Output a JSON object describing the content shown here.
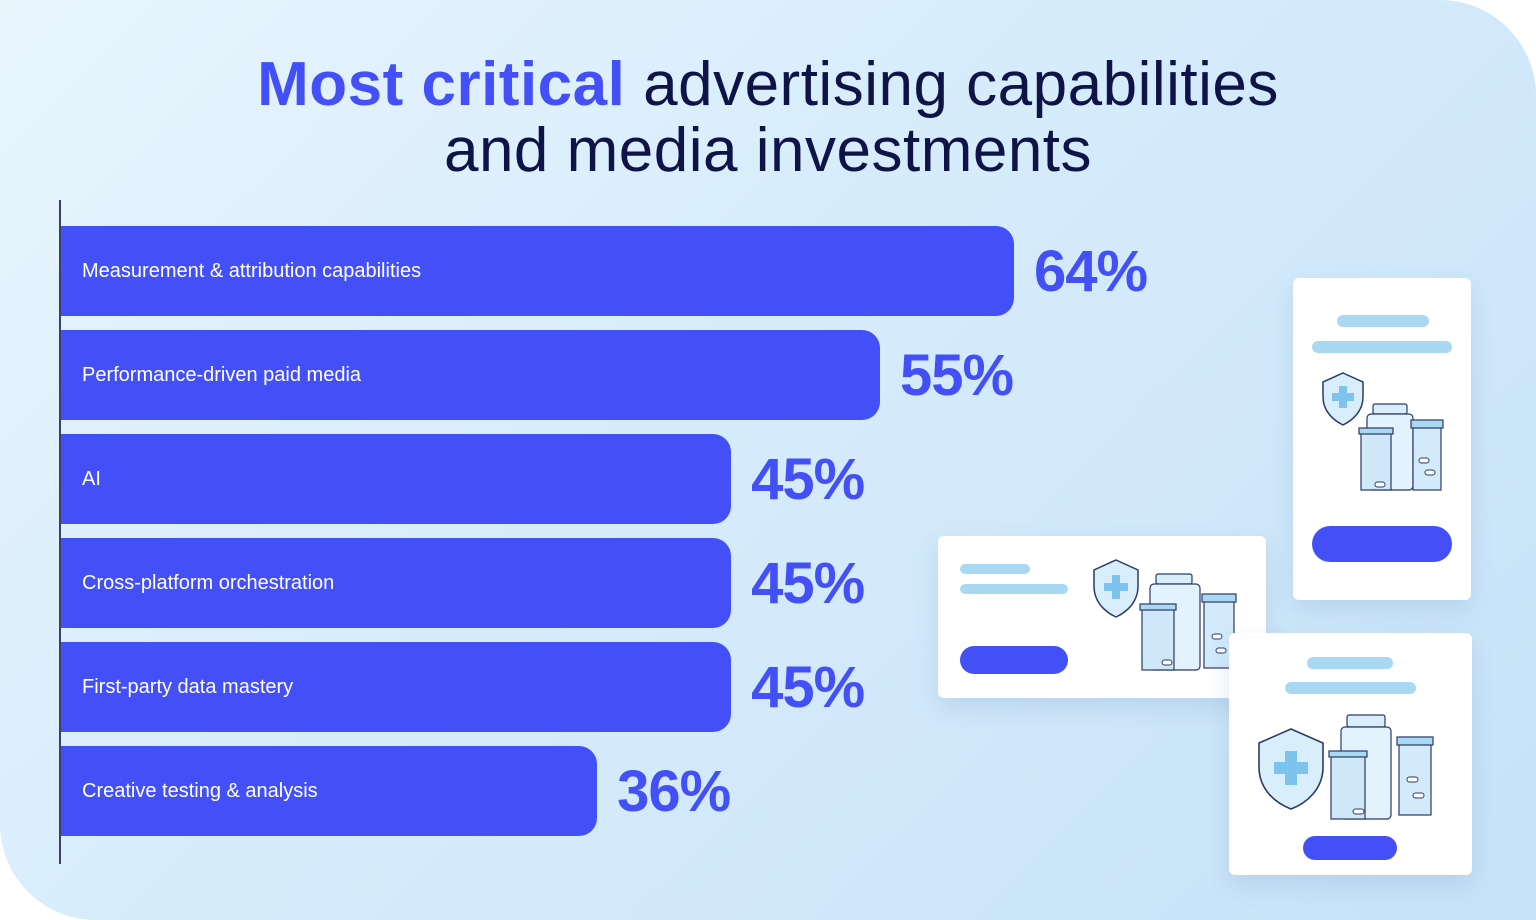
{
  "title": {
    "highlight": "Most critical",
    "rest_line1": " advertising capabilities",
    "line2": "and media investments"
  },
  "colors": {
    "accent": "#4350f7",
    "title_text": "#0e1447",
    "illustration_light": "#a9d8f3"
  },
  "chart_data": {
    "type": "bar",
    "orientation": "horizontal",
    "title": "Most critical advertising capabilities and media investments",
    "categories": [
      "Measurement & attribution capabilities",
      "Performance-driven paid media",
      "AI",
      "Cross-platform orchestration",
      "First-party data mastery",
      "Creative testing & analysis"
    ],
    "values": [
      64,
      55,
      45,
      45,
      45,
      36
    ],
    "value_labels": [
      "64%",
      "55%",
      "45%",
      "45%",
      "45%",
      "36%"
    ],
    "unit": "%",
    "xlim": [
      0,
      100
    ],
    "xlabel": "",
    "ylabel": "",
    "grid": false,
    "legend": "none"
  },
  "illustrations": [
    {
      "name": "ad-card-vertical",
      "icons": [
        "shield-plus-icon",
        "medicine-bottles-icon"
      ]
    },
    {
      "name": "ad-card-horizontal",
      "icons": [
        "shield-plus-icon",
        "medicine-bottles-icon"
      ]
    },
    {
      "name": "ad-card-square",
      "icons": [
        "shield-plus-icon",
        "medicine-bottles-icon"
      ]
    }
  ]
}
